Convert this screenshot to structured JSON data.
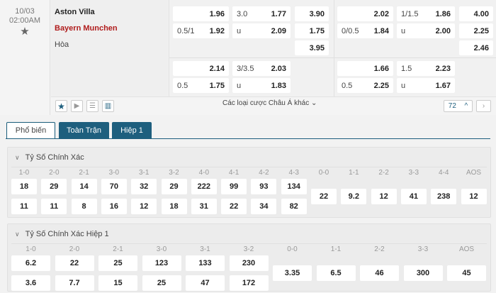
{
  "match": {
    "date": "10/03",
    "time": "02:00AM",
    "home": "Aston Villa",
    "away": "Bayern Munchen",
    "draw": "Hòa"
  },
  "full_time": {
    "hdp": [
      {
        "line": "",
        "odds": "1.96"
      },
      {
        "line": "0.5/1",
        "odds": "1.92"
      }
    ],
    "ou": [
      {
        "line": "3.0",
        "odds": "1.77"
      },
      {
        "line": "u",
        "odds": "2.09"
      }
    ],
    "x12": [
      "3.90",
      "1.75",
      "3.95"
    ],
    "hdp2": [
      {
        "line": "",
        "odds": "2.14"
      },
      {
        "line": "0.5",
        "odds": "1.75"
      }
    ],
    "ou2": [
      {
        "line": "3/3.5",
        "odds": "2.03"
      },
      {
        "line": "u",
        "odds": "1.83"
      }
    ]
  },
  "first_half": {
    "hdp": [
      {
        "line": "",
        "odds": "2.02"
      },
      {
        "line": "0/0.5",
        "odds": "1.84"
      }
    ],
    "ou": [
      {
        "line": "1/1.5",
        "odds": "1.86"
      },
      {
        "line": "u",
        "odds": "2.00"
      }
    ],
    "x12": [
      "4.00",
      "2.25",
      "2.46"
    ],
    "hdp2": [
      {
        "line": "",
        "odds": "1.66"
      },
      {
        "line": "0.5",
        "odds": "2.25"
      }
    ],
    "ou2": [
      {
        "line": "1.5",
        "odds": "2.23"
      },
      {
        "line": "u",
        "odds": "1.67"
      }
    ]
  },
  "toolbar": {
    "more_bets": "Các loại cược Châu Á khác",
    "count": "72"
  },
  "tabs": [
    "Phổ biến",
    "Toàn Trận",
    "Hiệp 1"
  ],
  "correct_score": {
    "title": "Tỷ Số Chính Xác",
    "win_labels": [
      "1-0",
      "2-0",
      "2-1",
      "3-0",
      "3-1",
      "3-2",
      "4-0",
      "4-1",
      "4-2",
      "4-3"
    ],
    "home": [
      "18",
      "29",
      "14",
      "70",
      "32",
      "29",
      "222",
      "99",
      "93",
      "134"
    ],
    "away": [
      "11",
      "11",
      "8",
      "16",
      "12",
      "18",
      "31",
      "22",
      "34",
      "82"
    ],
    "draw_labels": [
      "0-0",
      "1-1",
      "2-2",
      "3-3",
      "4-4",
      "AOS"
    ],
    "draw": [
      "22",
      "9.2",
      "12",
      "41",
      "238",
      "12"
    ]
  },
  "correct_score_h1": {
    "title": "Tỷ Số Chính Xác Hiệp 1",
    "win_labels": [
      "1-0",
      "2-0",
      "2-1",
      "3-0",
      "3-1",
      "3-2"
    ],
    "home": [
      "6.2",
      "22",
      "25",
      "123",
      "133",
      "230"
    ],
    "away": [
      "3.6",
      "7.7",
      "15",
      "25",
      "47",
      "172"
    ],
    "draw_labels": [
      "0-0",
      "1-1",
      "2-2",
      "3-3",
      "AOS"
    ],
    "draw": [
      "3.35",
      "6.5",
      "46",
      "300",
      "45"
    ]
  }
}
